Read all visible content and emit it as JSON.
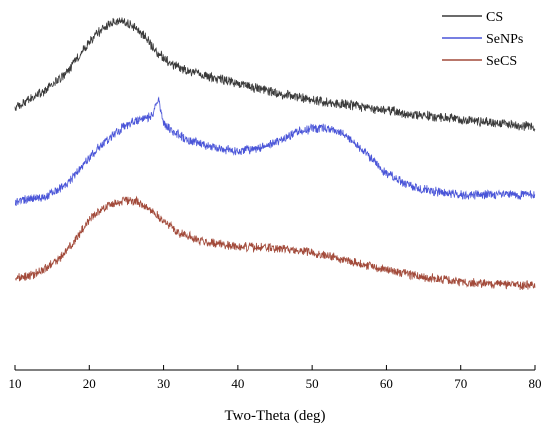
{
  "chart_data": {
    "type": "line",
    "title": "",
    "xlabel": "Two-Theta (deg)",
    "ylabel": "",
    "xlim": [
      10,
      80
    ],
    "xticks": [
      10,
      20,
      30,
      40,
      50,
      60,
      70,
      80
    ],
    "y_axis_visible": false,
    "legend_position": "top-right",
    "series": [
      {
        "name": "CS",
        "color": "#3a3a3a",
        "x": [
          10,
          14,
          17,
          19,
          21,
          23,
          24.5,
          26,
          27.5,
          29,
          31,
          34,
          37,
          40,
          45,
          50,
          55,
          60,
          65,
          70,
          75,
          80
        ],
        "y": [
          0.73,
          0.78,
          0.83,
          0.89,
          0.94,
          0.97,
          0.975,
          0.96,
          0.93,
          0.89,
          0.855,
          0.83,
          0.815,
          0.8,
          0.775,
          0.755,
          0.74,
          0.725,
          0.71,
          0.7,
          0.69,
          0.68
        ],
        "noise": 0.012
      },
      {
        "name": "SeNPs",
        "color": "#4a55d8",
        "x": [
          10,
          14,
          17,
          19,
          21,
          23,
          25,
          27,
          28.5,
          29.3,
          30,
          31,
          33,
          36,
          40,
          43,
          46,
          48,
          50,
          52,
          54,
          56,
          58,
          60,
          63,
          66,
          70,
          75,
          80
        ],
        "y": [
          0.47,
          0.485,
          0.52,
          0.57,
          0.615,
          0.655,
          0.685,
          0.7,
          0.71,
          0.755,
          0.69,
          0.67,
          0.645,
          0.625,
          0.61,
          0.62,
          0.645,
          0.665,
          0.675,
          0.675,
          0.66,
          0.63,
          0.59,
          0.55,
          0.515,
          0.5,
          0.49,
          0.49,
          0.49
        ],
        "noise": 0.011
      },
      {
        "name": "SeCS",
        "color": "#a24a3a",
        "x": [
          10,
          13,
          16,
          18,
          20,
          22,
          24,
          25.5,
          27,
          28.5,
          30,
          32,
          35,
          40,
          45,
          50,
          55,
          60,
          65,
          70,
          75,
          80
        ],
        "y": [
          0.255,
          0.27,
          0.31,
          0.36,
          0.42,
          0.455,
          0.47,
          0.475,
          0.465,
          0.445,
          0.415,
          0.385,
          0.36,
          0.345,
          0.34,
          0.33,
          0.305,
          0.28,
          0.26,
          0.245,
          0.24,
          0.235
        ],
        "noise": 0.011
      }
    ]
  }
}
